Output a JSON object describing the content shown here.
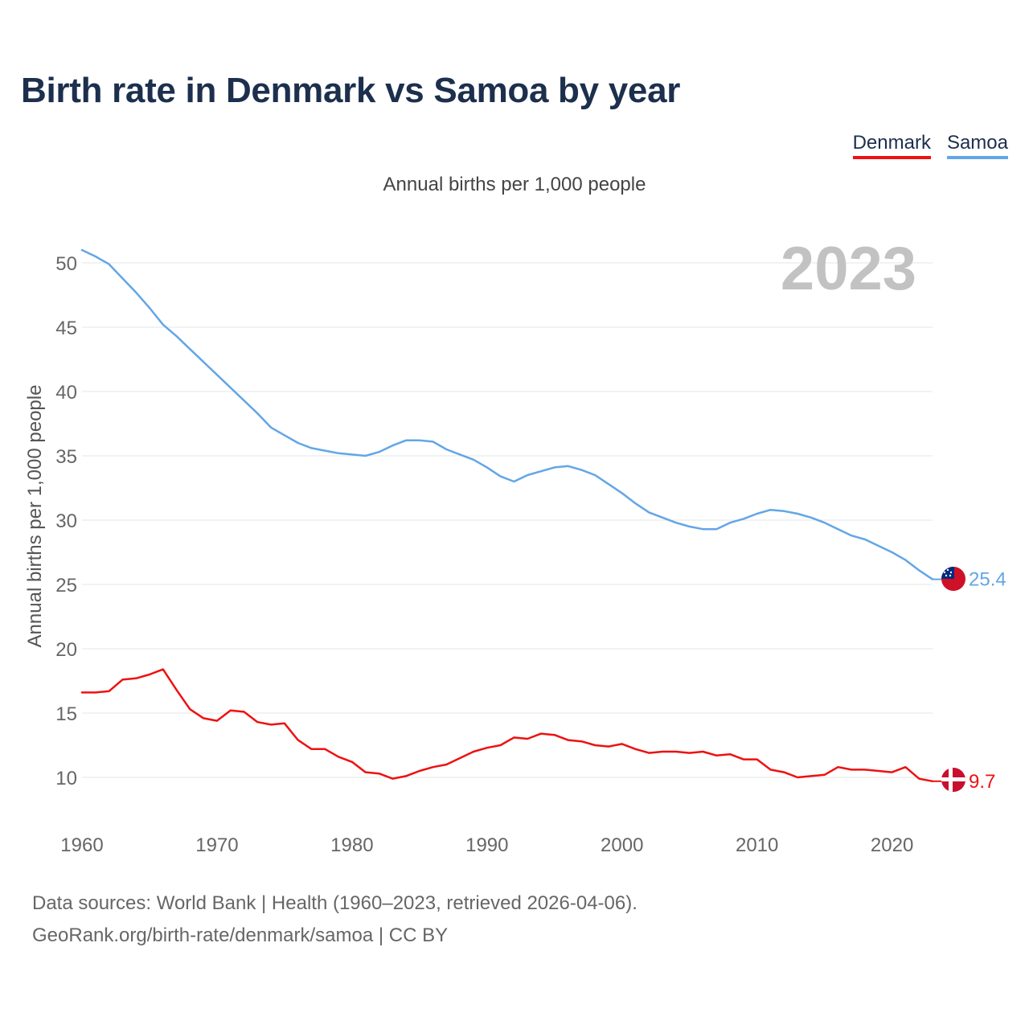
{
  "title": "Birth rate in Denmark vs Samoa by year",
  "subtitle": "Annual births per 1,000 people",
  "legend": [
    {
      "name": "Denmark",
      "color": "#ee1111"
    },
    {
      "name": "Samoa",
      "color": "#63a6e6"
    }
  ],
  "year_label": "2023",
  "footer": {
    "line1": "Data sources: World Bank | Health (1960–2023, retrieved 2026-04-06).",
    "line2": "GeoRank.org/birth-rate/denmark/samoa | CC BY"
  },
  "chart_data": {
    "type": "line",
    "title": "Birth rate in Denmark vs Samoa by year",
    "subtitle": "Annual births per 1,000 people",
    "xlabel": "",
    "ylabel": "Annual births per 1,000 people",
    "xlim": [
      1960,
      2023
    ],
    "ylim": [
      7,
      51
    ],
    "x_ticks": [
      1960,
      1970,
      1980,
      1990,
      2000,
      2010,
      2020
    ],
    "y_ticks": [
      10,
      15,
      20,
      25,
      30,
      35,
      40,
      45,
      50
    ],
    "grid": true,
    "legend_position": "top-right",
    "x": [
      1960,
      1961,
      1962,
      1963,
      1964,
      1965,
      1966,
      1967,
      1968,
      1969,
      1970,
      1971,
      1972,
      1973,
      1974,
      1975,
      1976,
      1977,
      1978,
      1979,
      1980,
      1981,
      1982,
      1983,
      1984,
      1985,
      1986,
      1987,
      1988,
      1989,
      1990,
      1991,
      1992,
      1993,
      1994,
      1995,
      1996,
      1997,
      1998,
      1999,
      2000,
      2001,
      2002,
      2003,
      2004,
      2005,
      2006,
      2007,
      2008,
      2009,
      2010,
      2011,
      2012,
      2013,
      2014,
      2015,
      2016,
      2017,
      2018,
      2019,
      2020,
      2021,
      2022,
      2023
    ],
    "series": [
      {
        "name": "Samoa",
        "color": "#63a6e6",
        "end_label": "25.4",
        "values": [
          51.0,
          50.5,
          49.9,
          48.8,
          47.7,
          46.5,
          45.2,
          44.3,
          43.3,
          42.3,
          41.3,
          40.3,
          39.3,
          38.3,
          37.2,
          36.6,
          36.0,
          35.6,
          35.4,
          35.2,
          35.1,
          35.0,
          35.3,
          35.8,
          36.2,
          36.2,
          36.1,
          35.5,
          35.1,
          34.7,
          34.1,
          33.4,
          33.0,
          33.5,
          33.8,
          34.1,
          34.2,
          33.9,
          33.5,
          32.8,
          32.1,
          31.3,
          30.6,
          30.2,
          29.8,
          29.5,
          29.3,
          29.3,
          29.8,
          30.1,
          30.5,
          30.8,
          30.7,
          30.5,
          30.2,
          29.8,
          29.3,
          28.8,
          28.5,
          28.0,
          27.5,
          26.9,
          26.1,
          25.4
        ]
      },
      {
        "name": "Denmark",
        "color": "#ee1111",
        "end_label": "9.7",
        "values": [
          16.6,
          16.6,
          16.7,
          17.6,
          17.7,
          18.0,
          18.4,
          16.8,
          15.3,
          14.6,
          14.4,
          15.2,
          15.1,
          14.3,
          14.1,
          14.2,
          12.9,
          12.2,
          12.2,
          11.6,
          11.2,
          10.4,
          10.3,
          9.9,
          10.1,
          10.5,
          10.8,
          11.0,
          11.5,
          12.0,
          12.3,
          12.5,
          13.1,
          13.0,
          13.4,
          13.3,
          12.9,
          12.8,
          12.5,
          12.4,
          12.6,
          12.2,
          11.9,
          12.0,
          12.0,
          11.9,
          12.0,
          11.7,
          11.8,
          11.4,
          11.4,
          10.6,
          10.4,
          10.0,
          10.1,
          10.2,
          10.8,
          10.6,
          10.6,
          10.5,
          10.4,
          10.8,
          9.9,
          9.7
        ]
      }
    ]
  }
}
